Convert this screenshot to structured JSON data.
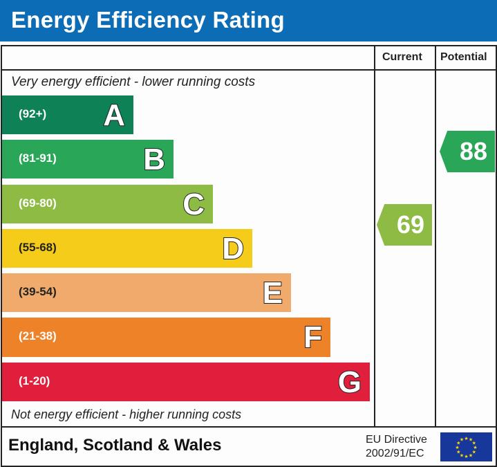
{
  "header": {
    "title": "Energy Efficiency Rating"
  },
  "columns": {
    "current": "Current",
    "potential": "Potential"
  },
  "captions": {
    "top": "Very energy efficient - lower running costs",
    "bottom": "Not energy efficient - higher running costs"
  },
  "footer": {
    "region": "England, Scotland & Wales",
    "directive_line1": "EU Directive",
    "directive_line2": "2002/91/EC",
    "flag_icon": "eu-flag-icon"
  },
  "chart_data": {
    "type": "bar",
    "title": "Energy Efficiency Rating",
    "categories": [
      "A",
      "B",
      "C",
      "D",
      "E",
      "F",
      "G"
    ],
    "bands": [
      {
        "letter": "A",
        "range": "(92+)",
        "color": "#0e8156"
      },
      {
        "letter": "B",
        "range": "(81-91)",
        "color": "#2aa659"
      },
      {
        "letter": "C",
        "range": "(69-80)",
        "color": "#8dbb44"
      },
      {
        "letter": "D",
        "range": "(55-68)",
        "color": "#f5cc1a"
      },
      {
        "letter": "E",
        "range": "(39-54)",
        "color": "#f0aa6b"
      },
      {
        "letter": "F",
        "range": "(21-38)",
        "color": "#ed8228"
      },
      {
        "letter": "G",
        "range": "(1-20)",
        "color": "#df1f3c"
      }
    ],
    "current": {
      "value": "69",
      "band": "C",
      "color": "#8dbb44"
    },
    "potential": {
      "value": "88",
      "band": "B",
      "color": "#2aa659"
    }
  }
}
